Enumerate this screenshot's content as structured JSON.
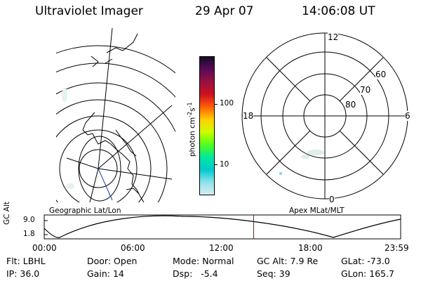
{
  "header": {
    "instrument": "Ultraviolet Imager",
    "date": "29 Apr 07",
    "time": "14:06:08 UT"
  },
  "colorbar": {
    "unit_label": "photon cm",
    "unit_exp1": "-2",
    "unit_s": "s",
    "unit_exp2": "-1",
    "ticks": [
      "100",
      "10"
    ],
    "colors": [
      "#1a0a2e",
      "#5a0a55",
      "#9a1040",
      "#d01020",
      "#ff6000",
      "#ffd000",
      "#c8ff00",
      "#50ff20",
      "#00e8a0",
      "#00c8d0",
      "#90e0e8",
      "#d8ecf0"
    ]
  },
  "left_panel": {
    "label": "Geographic Lat/Lon"
  },
  "right_panel": {
    "label": "Apex MLat/MLT",
    "mlt_labels": {
      "top": "12",
      "left": "18",
      "right": "6",
      "bottom": "0"
    },
    "lat_labels": [
      "60",
      "70",
      "80"
    ]
  },
  "timeline": {
    "ylabel": "GC Alt",
    "yticks": [
      "9.0",
      "1.8"
    ],
    "xticks": [
      "00:00",
      "06:00",
      "12:00",
      "18:00",
      "23:59"
    ],
    "marker_color": "#cc0000",
    "marker_fraction": 0.5876
  },
  "info_rows": [
    [
      {
        "key": "Flt:",
        "value": "LBHL"
      },
      {
        "key": "Door:",
        "value": "Open"
      },
      {
        "key": "Mode:",
        "value": "Normal"
      },
      {
        "key": "GC Alt:",
        "value": "7.9 Re"
      },
      {
        "key": "GLat:",
        "value": "-73.0"
      }
    ],
    [
      {
        "key": "IP:",
        "value": "36.0"
      },
      {
        "key": "Gain:",
        "value": "14"
      },
      {
        "key": "Dsp:",
        "value": "-5.4"
      },
      {
        "key": "Seq:",
        "value": "39"
      },
      {
        "key": "GLon:",
        "value": "165.7"
      }
    ]
  ]
}
